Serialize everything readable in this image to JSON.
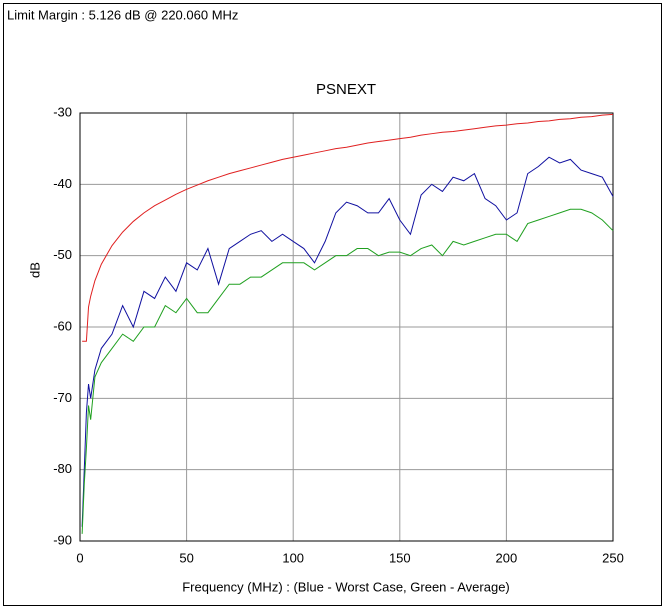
{
  "chart_data": {
    "type": "line",
    "header": "Limit Margin : 5.126 dB @ 220.060 MHz",
    "title": "PSNEXT",
    "xlabel": "Frequency (MHz) : (Blue - Worst Case, Green - Average)",
    "ylabel": "dB",
    "x": [
      1,
      2,
      3,
      4,
      5,
      7,
      10,
      15,
      20,
      25,
      30,
      35,
      40,
      45,
      50,
      55,
      60,
      65,
      70,
      75,
      80,
      85,
      90,
      95,
      100,
      105,
      110,
      115,
      120,
      125,
      130,
      135,
      140,
      145,
      150,
      155,
      160,
      165,
      170,
      175,
      180,
      185,
      190,
      195,
      200,
      205,
      210,
      215,
      220,
      225,
      230,
      235,
      240,
      245,
      250
    ],
    "series": [
      {
        "color": "#e02020",
        "values": [
          -62,
          -62,
          -62,
          -57.2,
          -55.7,
          -53.5,
          -51.2,
          -48.6,
          -46.7,
          -45.2,
          -44.0,
          -43.0,
          -42.2,
          -41.4,
          -40.7,
          -40.1,
          -39.5,
          -39.0,
          -38.5,
          -38.1,
          -37.7,
          -37.3,
          -36.9,
          -36.5,
          -36.2,
          -35.9,
          -35.6,
          -35.3,
          -35.0,
          -34.8,
          -34.5,
          -34.2,
          -34.0,
          -33.8,
          -33.6,
          -33.4,
          -33.1,
          -32.9,
          -32.7,
          -32.6,
          -32.4,
          -32.2,
          -32.0,
          -31.8,
          -31.7,
          -31.5,
          -31.4,
          -31.2,
          -31.1,
          -30.9,
          -30.8,
          -30.6,
          -30.5,
          -30.3,
          -30.2
        ]
      },
      {
        "color": "#1010a0",
        "values": [
          -88,
          -80,
          -72,
          -68,
          -70,
          -66,
          -63,
          -61,
          -57,
          -60,
          -55,
          -56,
          -53,
          -55,
          -51,
          -52,
          -49,
          -54,
          -49,
          -48,
          -47,
          -46.5,
          -48,
          -47,
          -48,
          -49,
          -51,
          -48,
          -44,
          -42.5,
          -43,
          -44,
          -44,
          -42,
          -45,
          -47,
          -41.5,
          -40,
          -41,
          -39,
          -39.5,
          -38.5,
          -42,
          -43,
          -45,
          -44,
          -38.5,
          -37.5,
          -36.2,
          -37,
          -36.5,
          -38,
          -38.5,
          -39,
          -41.7
        ]
      },
      {
        "color": "#20a020",
        "values": [
          -89,
          -82,
          -77,
          -71,
          -73,
          -67,
          -65,
          -63,
          -61,
          -62,
          -60,
          -60,
          -57,
          -58,
          -56,
          -58,
          -58,
          -56,
          -54,
          -54,
          -53,
          -53,
          -52,
          -51,
          -51,
          -51,
          -52,
          -51,
          -50,
          -50,
          -49,
          -49,
          -50,
          -49.5,
          -49.5,
          -50,
          -49,
          -48.5,
          -50,
          -48,
          -48.5,
          -48,
          -47.5,
          -47,
          -47,
          -48,
          -45.5,
          -45,
          -44.5,
          -44,
          -43.5,
          -43.5,
          -44,
          -45,
          -46.5
        ]
      }
    ],
    "xlim": [
      0,
      250
    ],
    "xticks": [
      0,
      50,
      100,
      150,
      200,
      250
    ],
    "ylim": [
      -90,
      -30
    ],
    "yticks": [
      -90,
      -80,
      -70,
      -60,
      -50,
      -40,
      -30
    ],
    "grid": true
  }
}
